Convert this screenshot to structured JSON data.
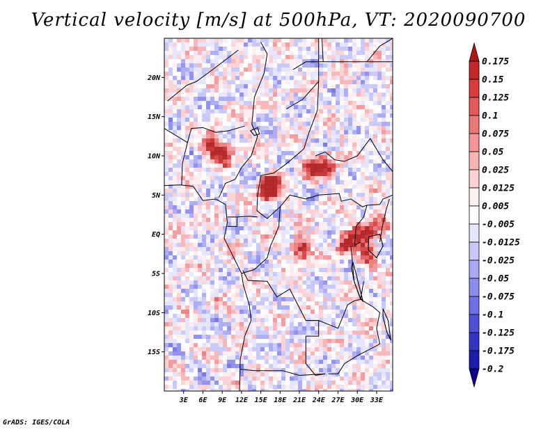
{
  "title": "Vertical velocity [m/s] at 500hPa, VT: 2020090700",
  "footer": "GrADS: IGES/COLA",
  "colors": {
    "ocean_base": "#d8d8f0",
    "border": "#000000"
  },
  "chart_data": {
    "type": "heatmap",
    "title": "Vertical velocity [m/s] at 500hPa, VT: 2020090700",
    "xlim": [
      0,
      35.5
    ],
    "ylim": [
      -20,
      25
    ],
    "x_ticks": [
      {
        "value": 3,
        "label": "3E"
      },
      {
        "value": 6,
        "label": "6E"
      },
      {
        "value": 9,
        "label": "9E"
      },
      {
        "value": 12,
        "label": "12E"
      },
      {
        "value": 15,
        "label": "15E"
      },
      {
        "value": 18,
        "label": "18E"
      },
      {
        "value": 21,
        "label": "21E"
      },
      {
        "value": 24,
        "label": "24E"
      },
      {
        "value": 27,
        "label": "27E"
      },
      {
        "value": 30,
        "label": "30E"
      },
      {
        "value": 33,
        "label": "33E"
      }
    ],
    "y_ticks": [
      {
        "value": 20,
        "label": "20N"
      },
      {
        "value": 15,
        "label": "15N"
      },
      {
        "value": 10,
        "label": "10N"
      },
      {
        "value": 5,
        "label": "5N"
      },
      {
        "value": 0,
        "label": "EQ"
      },
      {
        "value": -5,
        "label": "5S"
      },
      {
        "value": -10,
        "label": "10S"
      },
      {
        "value": -15,
        "label": "15S"
      }
    ],
    "colorbar": {
      "labels": [
        "0.175",
        "0.15",
        "0.125",
        "0.1",
        "0.075",
        "0.05",
        "0.025",
        "0.0125",
        "0.005",
        "-0.005",
        "-0.0125",
        "-0.025",
        "-0.05",
        "-0.075",
        "-0.1",
        "-0.125",
        "-0.175",
        "-0.2"
      ],
      "colors": [
        "#b01818",
        "#c42828",
        "#d83c3c",
        "#e45a5a",
        "#ec7878",
        "#f49696",
        "#f8b4b4",
        "#fcd2d2",
        "#fff0f0",
        "#ffffff",
        "#e6e6ff",
        "#c8c8fa",
        "#a8a8f4",
        "#8c8cee",
        "#7070e6",
        "#5050d8",
        "#3434c4",
        "#1c1cac",
        "#100090"
      ]
    },
    "convective_cores": [
      {
        "lon": 7,
        "lat": 11.5,
        "strength": 1
      },
      {
        "lon": 9,
        "lat": 10.5,
        "strength": 1
      },
      {
        "lon": 15.5,
        "lat": 6,
        "strength": 1
      },
      {
        "lon": 16.5,
        "lat": 6.5,
        "strength": 0.9
      },
      {
        "lon": 22.5,
        "lat": 8.8,
        "strength": 0.9
      },
      {
        "lon": 25,
        "lat": 9,
        "strength": 0.8
      },
      {
        "lon": 21,
        "lat": -1.5,
        "strength": 1
      },
      {
        "lon": 28,
        "lat": -1,
        "strength": 1
      },
      {
        "lon": 30.5,
        "lat": 0.5,
        "strength": 1
      },
      {
        "lon": 31,
        "lat": -2.5,
        "strength": 0.8
      },
      {
        "lon": 33,
        "lat": 1.5,
        "strength": 0.7
      }
    ]
  }
}
